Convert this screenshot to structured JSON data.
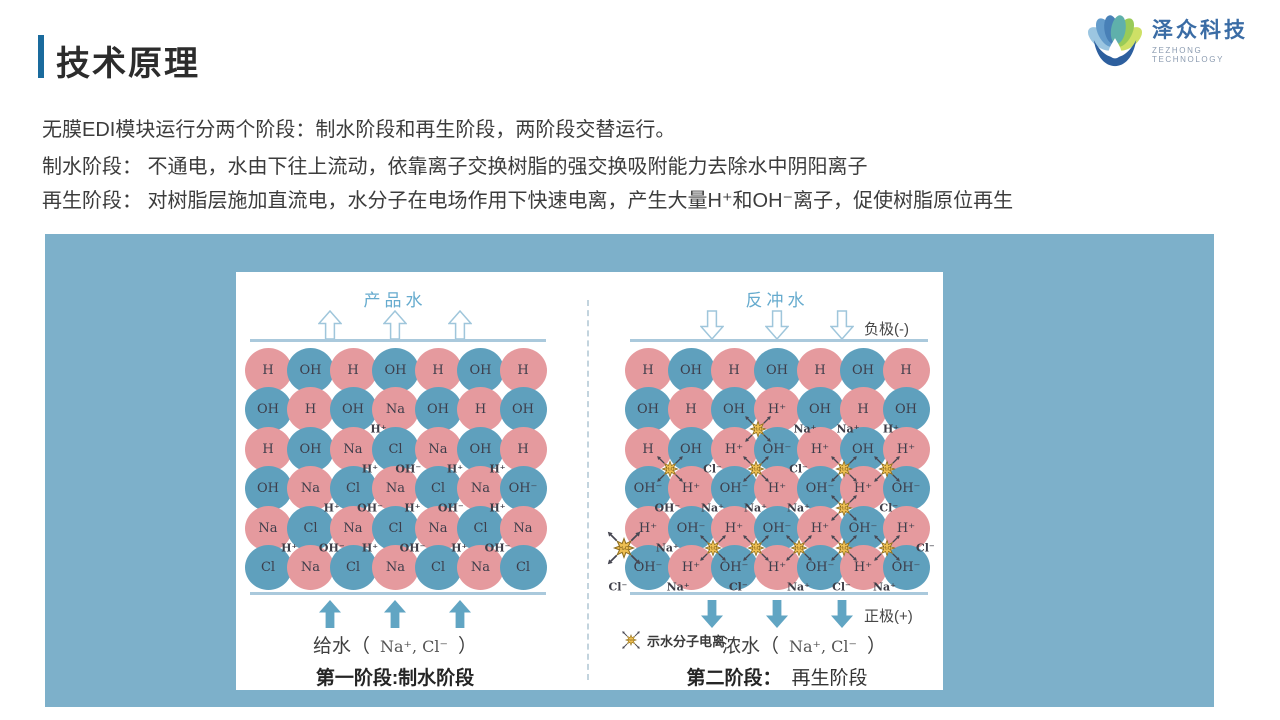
{
  "slide": {
    "title": "技术原理",
    "intro": "无膜EDI模块运行分两个阶段：制水阶段和再生阶段，两阶段交替运行。",
    "stage_lines": [
      "制水阶段： 不通电，水由下往上流动，依靠离子交换树脂的强交换吸附能力去除水中阴阳离子",
      "再生阶段： 对树脂层施加直流电，水分子在电场作用下快速电离，产生大量H⁺和OH⁻离子，促使树脂原位再生"
    ]
  },
  "logo": {
    "name": "泽众科技",
    "subtitle": "ZEZHONG TECHNOLOGY"
  },
  "colors": {
    "accent_bar": "#1a6b9d",
    "panel_bg": "#7db0ca",
    "bead_cation": "#e59a9e",
    "bead_anion": "#5fa0bd",
    "diagram_title": "#66abce",
    "flow_line": "#aac9dc",
    "solid_arrow": "#61a5c3",
    "arrow_outline": "#9fc6db",
    "star_fill": "#eebf52",
    "star_stroke": "#8a6a1c",
    "ion_text": "#3e3e48",
    "logo_text": "#3a6ca5"
  },
  "diagram_left": {
    "flow_title": "产品水",
    "caption": "第一阶段:制水阶段",
    "inlet": {
      "prefix": "给水（",
      "ions": "Na⁺, Cl⁻",
      "suffix": "）"
    },
    "rows": [
      [
        "H",
        "OH",
        "H",
        "OH",
        "H",
        "OH",
        "H"
      ],
      [
        "OH",
        "H",
        "OH",
        "Na",
        "OH",
        "H",
        "OH"
      ],
      [
        "H",
        "OH",
        "Na",
        "Cl",
        "Na",
        "OH",
        "H"
      ],
      [
        "OH",
        "Na",
        "Cl",
        "Na",
        "Cl",
        "Na",
        "OH⁻"
      ],
      [
        "Na",
        "Cl",
        "Na",
        "Cl",
        "Na",
        "Cl",
        "Na"
      ],
      [
        "Cl",
        "Na",
        "Cl",
        "Na",
        "Cl",
        "Na",
        "Cl"
      ]
    ],
    "free_ions": [
      {
        "gap": 2,
        "col": 3.6,
        "text": "H⁺"
      },
      {
        "gap": 3,
        "col": 3.4,
        "text": "H⁺"
      },
      {
        "gap": 3,
        "col": 4.3,
        "text": "OH⁻"
      },
      {
        "gap": 3,
        "col": 5.4,
        "text": "H⁺"
      },
      {
        "gap": 3,
        "col": 6.4,
        "text": "H⁺"
      },
      {
        "gap": 4,
        "col": 2.5,
        "text": "H⁺"
      },
      {
        "gap": 4,
        "col": 3.4,
        "text": "OH⁻"
      },
      {
        "gap": 4,
        "col": 4.4,
        "text": "H⁺"
      },
      {
        "gap": 4,
        "col": 5.3,
        "text": "OH⁻"
      },
      {
        "gap": 4,
        "col": 6.4,
        "text": "H⁺"
      },
      {
        "gap": 5,
        "col": 1.5,
        "text": "H⁺"
      },
      {
        "gap": 5,
        "col": 2.5,
        "text": "OH⁻"
      },
      {
        "gap": 5,
        "col": 3.4,
        "text": "H⁺"
      },
      {
        "gap": 5,
        "col": 4.4,
        "text": "OH⁻"
      },
      {
        "gap": 5,
        "col": 5.5,
        "text": "H⁺"
      },
      {
        "gap": 5,
        "col": 6.4,
        "text": "OH⁻"
      }
    ]
  },
  "diagram_right": {
    "flow_title": "反冲水",
    "electrode_top": "负极(-)",
    "electrode_bottom": "正极(+)",
    "legend_label": "示水分子电离",
    "star_text": "H₂O",
    "caption_prefix": "第二阶段：",
    "caption_text": "再生阶段",
    "outlet": {
      "prefix": "浓水（",
      "ions": "Na⁺, Cl⁻",
      "suffix": "）"
    },
    "rows": [
      [
        "H",
        "OH",
        "H",
        "OH",
        "H",
        "OH",
        "H"
      ],
      [
        "OH",
        "H",
        "OH",
        "H⁺",
        "OH",
        "H",
        "OH"
      ],
      [
        "H",
        "OH",
        "H⁺",
        "OH⁻",
        "H⁺",
        "OH",
        "H⁺"
      ],
      [
        "OH⁻",
        "H⁺",
        "OH⁻",
        "H⁺",
        "OH⁻",
        "H⁺",
        "OH⁻"
      ],
      [
        "H⁺",
        "OH⁻",
        "H⁺",
        "OH⁻",
        "H⁺",
        "OH⁻",
        "H⁺"
      ],
      [
        "OH⁻",
        "H⁺",
        "OH⁻",
        "H⁺",
        "OH⁻",
        "H⁺",
        "OH⁻"
      ]
    ],
    "free_ions": [
      {
        "gap": 2,
        "col": 4.65,
        "text": "Na⁺"
      },
      {
        "gap": 2,
        "col": 5.65,
        "text": "Na⁺"
      },
      {
        "gap": 2,
        "col": 6.65,
        "text": "H⁺"
      },
      {
        "gap": 3,
        "col": 2.5,
        "text": "Cl⁻"
      },
      {
        "gap": 3,
        "col": 4.5,
        "text": "Cl⁻"
      },
      {
        "gap": 4,
        "col": 1.45,
        "text": "OH⁻"
      },
      {
        "gap": 4,
        "col": 2.5,
        "text": "Na⁺"
      },
      {
        "gap": 4,
        "col": 3.5,
        "text": "Na⁺"
      },
      {
        "gap": 4,
        "col": 4.5,
        "text": "Na⁺"
      },
      {
        "gap": 4,
        "col": 6.6,
        "text": "Cl⁻"
      },
      {
        "gap": 5,
        "col": 1.45,
        "text": "Na⁺"
      },
      {
        "gap": 5,
        "col": 7.45,
        "text": "Cl⁻"
      },
      {
        "gap": 6,
        "col": 0.3,
        "text": "Cl⁻"
      },
      {
        "gap": 6,
        "col": 1.7,
        "text": "Na⁺"
      },
      {
        "gap": 6,
        "col": 3.1,
        "text": "Cl⁻"
      },
      {
        "gap": 6,
        "col": 4.5,
        "text": "Na⁺"
      },
      {
        "gap": 6,
        "col": 5.5,
        "text": "Cl⁻"
      },
      {
        "gap": 6,
        "col": 6.5,
        "text": "Na⁺"
      }
    ],
    "stars": [
      {
        "gap": 2,
        "col": 3.55
      },
      {
        "gap": 3,
        "col": 1.5
      },
      {
        "gap": 3,
        "col": 3.5
      },
      {
        "gap": 3,
        "col": 5.55
      },
      {
        "gap": 3,
        "col": 6.55
      },
      {
        "gap": 4,
        "col": 5.55
      },
      {
        "gap": 5,
        "col": 0.45,
        "big": true
      },
      {
        "gap": 5,
        "col": 2.5
      },
      {
        "gap": 5,
        "col": 3.5
      },
      {
        "gap": 5,
        "col": 4.5
      },
      {
        "gap": 5,
        "col": 5.55
      },
      {
        "gap": 5,
        "col": 6.55
      }
    ]
  }
}
